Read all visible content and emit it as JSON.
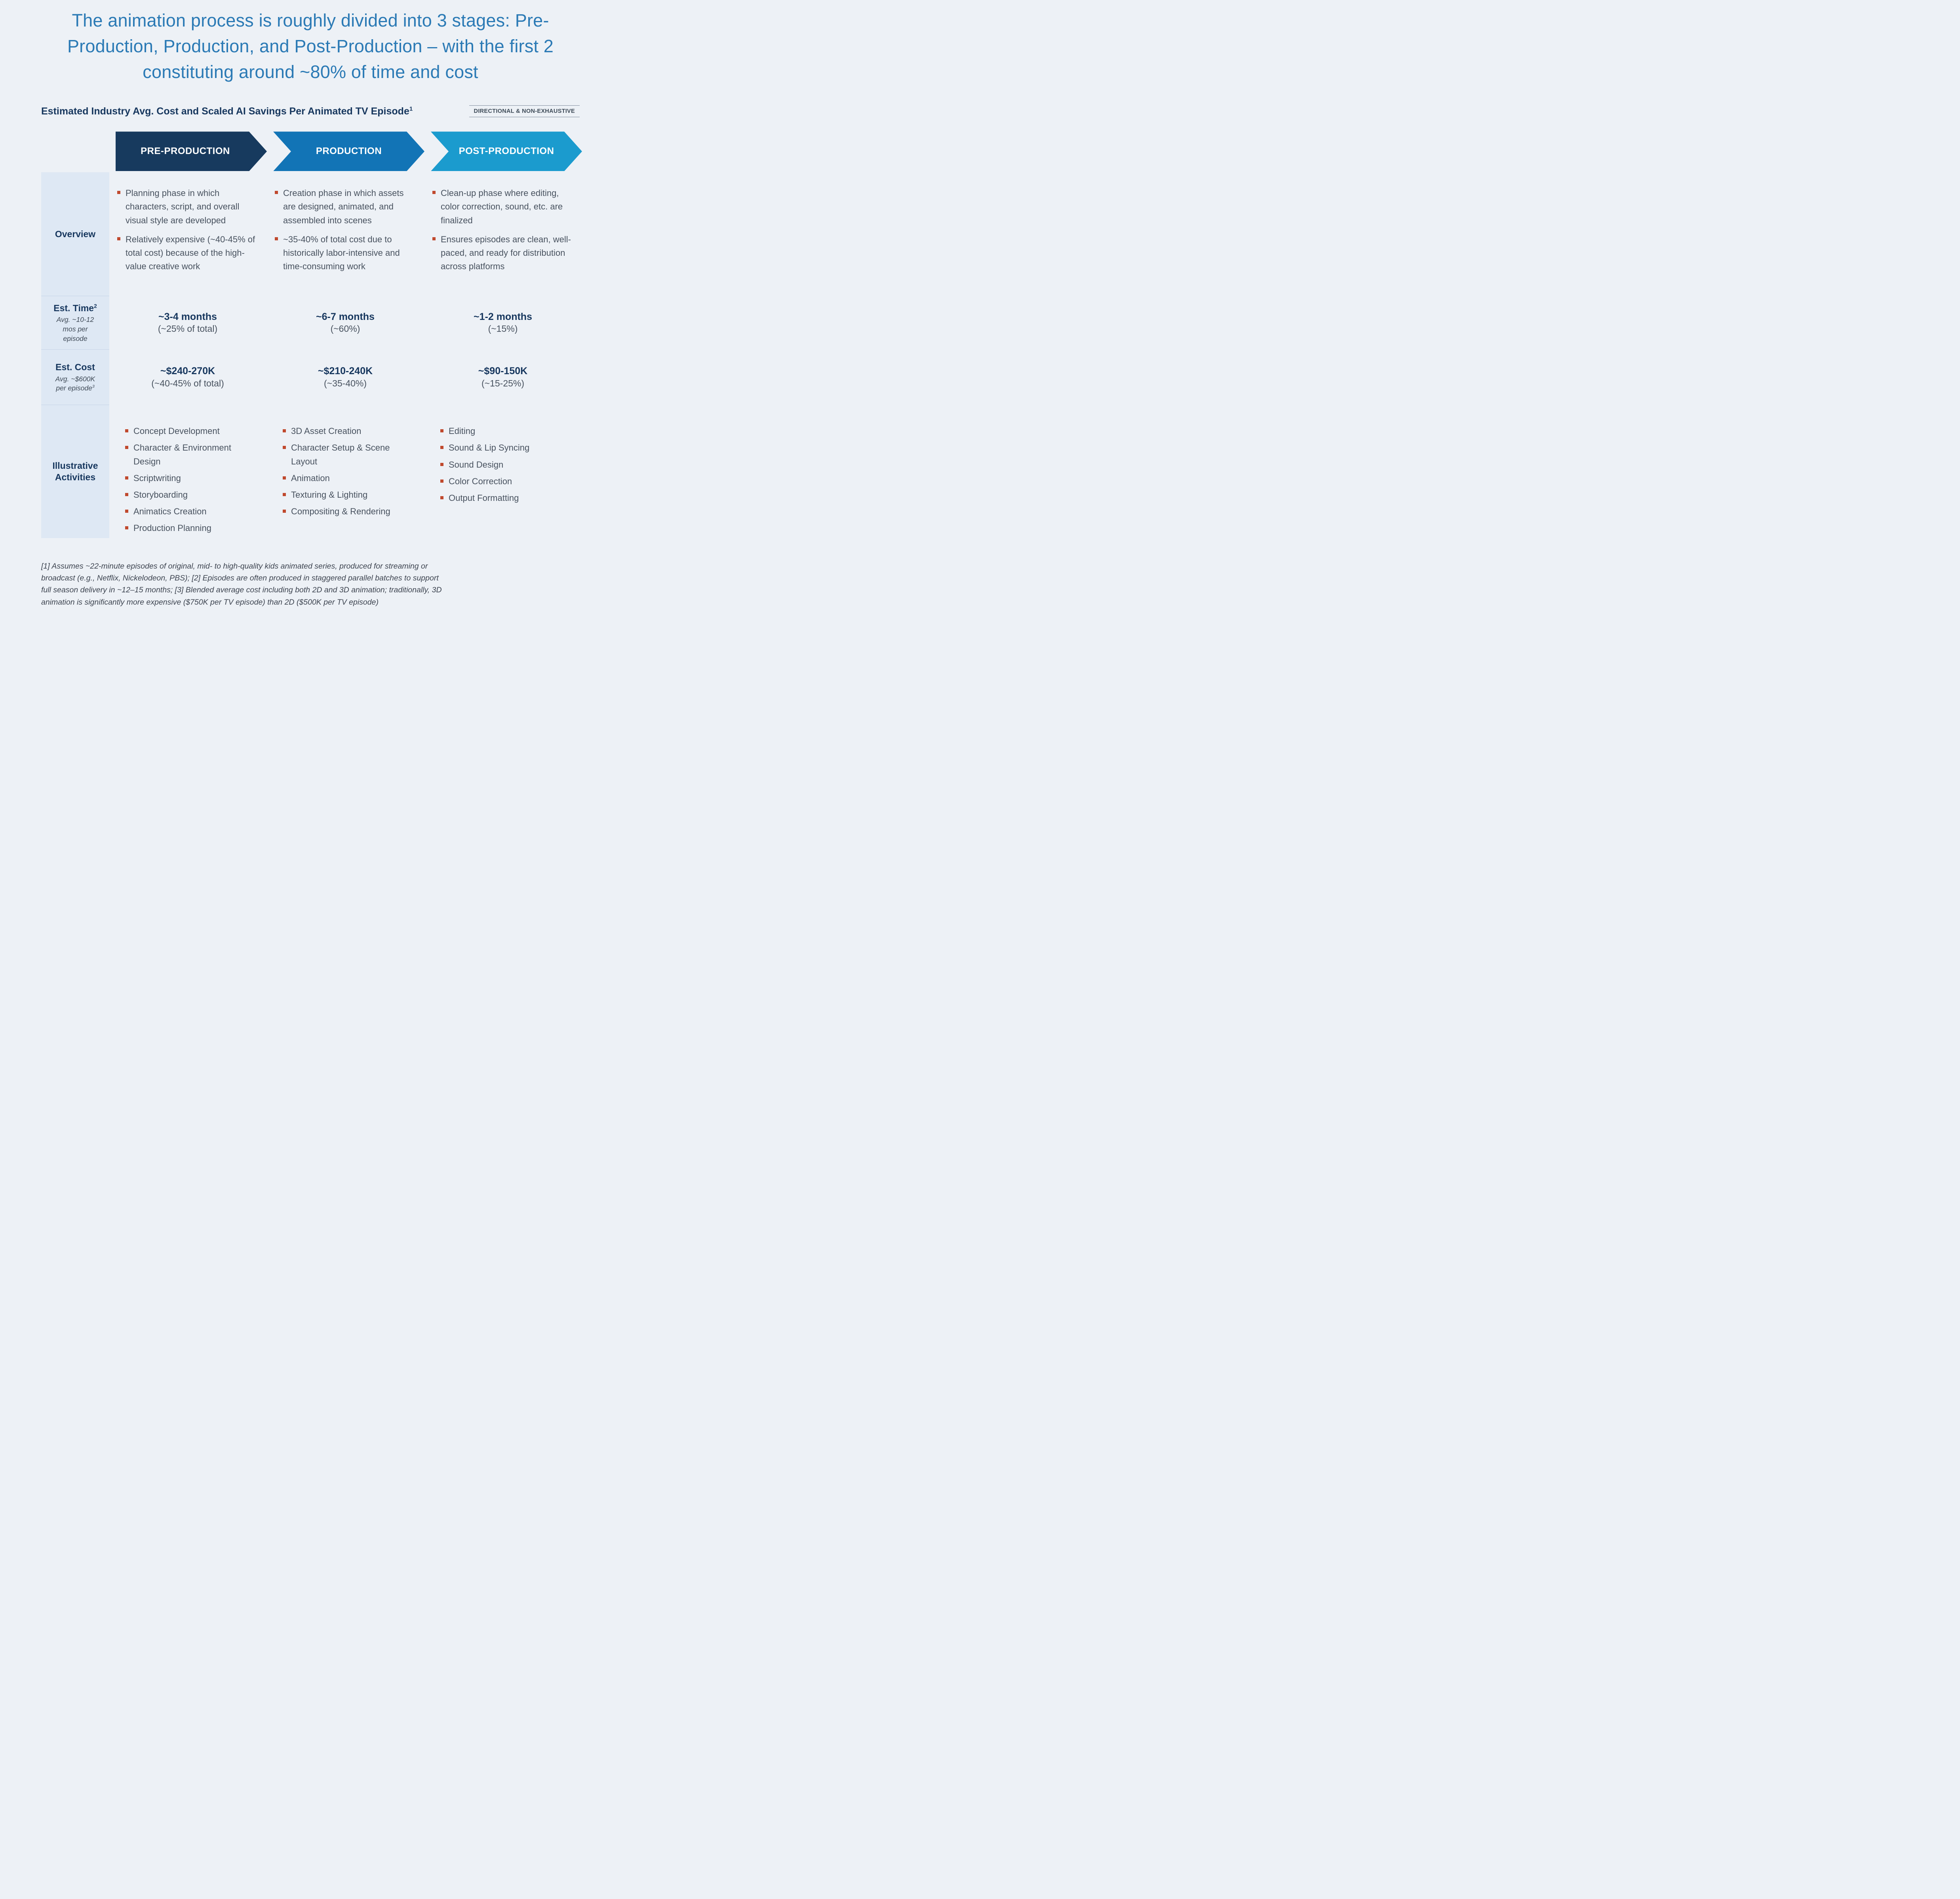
{
  "page": {
    "title": "The animation process is roughly divided into 3 stages: Pre-Production, Production, and Post-Production – with the first 2 constituting around ~80% of time and cost",
    "subtitle": "Estimated Industry Avg. Cost and Scaled AI Savings Per Animated TV Episode",
    "subtitle_sup": "1",
    "tag": "DIRECTIONAL & NON-EXHAUSTIVE",
    "footnote": "[1] Assumes ~22-minute episodes of original, mid- to high-quality kids animated series, produced for streaming or broadcast (e.g., Netflix, Nickelodeon, PBS); [2] Episodes are often produced in staggered parallel batches to support full season delivery in ~12–15 months; [3] Blended average cost including both 2D and 3D animation; traditionally, 3D animation is significantly more expensive ($750K per TV episode) than 2D ($500K per TV episode)"
  },
  "colors": {
    "background": "#edf1f6",
    "title_blue": "#2b7ab5",
    "navy": "#17375e",
    "chevron_pre_production": "#173a5e",
    "chevron_production": "#1274b6",
    "chevron_post_production": "#1b9bce",
    "label_column_bg": "#dee8f4",
    "bullet_square": "#c0492d",
    "body_text": "#48525f"
  },
  "rows": {
    "overview_label": "Overview",
    "time_label": "Est. Time",
    "time_sup": "2",
    "time_sub": "Avg. ~10-12 mos per episode",
    "cost_label": "Est. Cost",
    "cost_sub": "Avg. ~$600K per episode",
    "cost_sub_sup": "3",
    "activities_label": "Illustrative Activities"
  },
  "stages": [
    {
      "name": "PRE-PRODUCTION",
      "overview": [
        "Planning phase in which characters, script, and overall visual style are developed",
        "Relatively expensive (~40-45% of total cost) because of the high-value creative work"
      ],
      "time_value": "~3-4 months",
      "time_share": "(~25% of total)",
      "cost_value": "~$240-270K",
      "cost_share": "(~40-45% of total)",
      "activities": [
        "Concept Development",
        "Character & Environment Design",
        "Scriptwriting",
        "Storyboarding",
        "Animatics Creation",
        "Production Planning"
      ]
    },
    {
      "name": "PRODUCTION",
      "overview": [
        "Creation phase in which assets are designed, animated, and assembled into scenes",
        "~35-40% of total cost due to historically labor-intensive and time-consuming work"
      ],
      "time_value": "~6-7 months",
      "time_share": "(~60%)",
      "cost_value": "~$210-240K",
      "cost_share": "(~35-40%)",
      "activities": [
        "3D Asset Creation",
        "Character Setup & Scene Layout",
        "Animation",
        "Texturing & Lighting",
        "Compositing & Rendering"
      ]
    },
    {
      "name": "POST-PRODUCTION",
      "overview": [
        "Clean-up phase where editing, color correction, sound, etc. are finalized",
        "Ensures episodes are clean, well-paced, and ready for distribution across platforms"
      ],
      "time_value": "~1-2 months",
      "time_share": "(~15%)",
      "cost_value": "~$90-150K",
      "cost_share": "(~15-25%)",
      "activities": [
        "Editing",
        "Sound & Lip Syncing",
        "Sound Design",
        "Color Correction",
        "Output Formatting"
      ]
    }
  ]
}
